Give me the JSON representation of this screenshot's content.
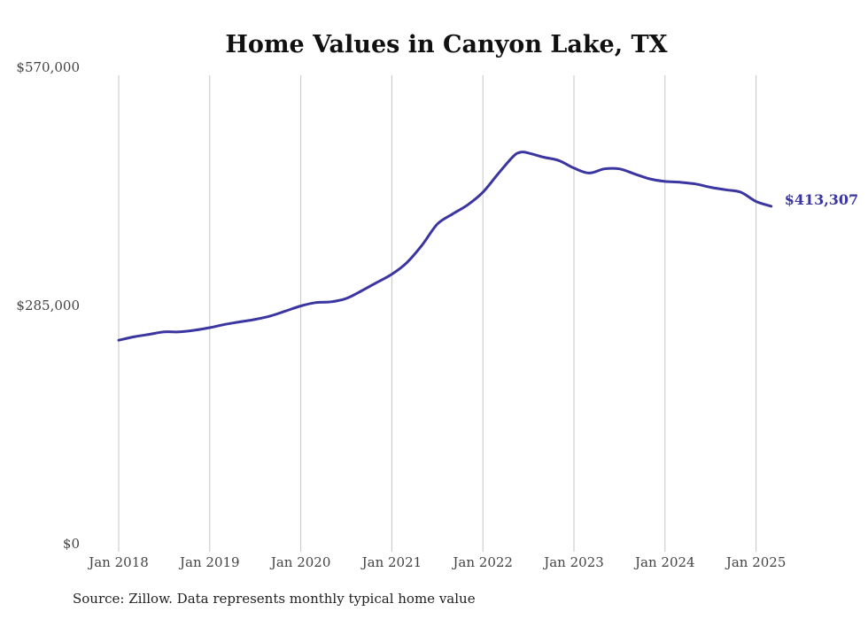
{
  "chart_data": {
    "type": "line",
    "title": "Home Values in Canyon Lake, TX",
    "xlabel": "",
    "ylabel": "",
    "ylim": [
      0,
      570000
    ],
    "yticks": [
      {
        "value": 0,
        "label": "$0"
      },
      {
        "value": 285000,
        "label": "$285,000"
      },
      {
        "value": 570000,
        "label": "$570,000"
      }
    ],
    "xticks": [
      {
        "value": "2018-01",
        "label": "Jan 2018"
      },
      {
        "value": "2019-01",
        "label": "Jan 2019"
      },
      {
        "value": "2020-01",
        "label": "Jan 2020"
      },
      {
        "value": "2021-01",
        "label": "Jan 2021"
      },
      {
        "value": "2022-01",
        "label": "Jan 2022"
      },
      {
        "value": "2023-01",
        "label": "Jan 2023"
      },
      {
        "value": "2024-01",
        "label": "Jan 2024"
      },
      {
        "value": "2025-01",
        "label": "Jan 2025"
      }
    ],
    "grid": {
      "vertical": true,
      "horizontal": false
    },
    "line_color": "#3a35a0",
    "end_label": "$413,307",
    "series": [
      {
        "x": [
          "2018-01",
          "2018-03",
          "2018-05",
          "2018-07",
          "2018-09",
          "2018-11",
          "2019-01",
          "2019-03",
          "2019-05",
          "2019-07",
          "2019-09",
          "2019-11",
          "2020-01",
          "2020-03",
          "2020-05",
          "2020-07",
          "2020-09",
          "2020-11",
          "2021-01",
          "2021-03",
          "2021-05",
          "2021-07",
          "2021-09",
          "2021-11",
          "2022-01",
          "2022-03",
          "2022-05",
          "2022-06",
          "2022-07",
          "2022-09",
          "2022-11",
          "2023-01",
          "2023-03",
          "2023-05",
          "2023-07",
          "2023-09",
          "2023-11",
          "2024-01",
          "2024-03",
          "2024-05",
          "2024-07",
          "2024-09",
          "2024-11",
          "2025-01",
          "2025-03"
        ],
        "values": [
          253000,
          257000,
          260000,
          263000,
          263000,
          265000,
          268000,
          272000,
          275000,
          278000,
          282000,
          288000,
          294000,
          298000,
          299000,
          303000,
          312000,
          322000,
          332000,
          346000,
          367000,
          392000,
          404000,
          415000,
          430000,
          452000,
          473000,
          478000,
          477000,
          472000,
          468000,
          459000,
          453000,
          458000,
          458000,
          452000,
          446000,
          443000,
          442000,
          440000,
          436000,
          433000,
          430000,
          419000,
          413307
        ]
      }
    ]
  },
  "source": "Source: Zillow. Data represents monthly typical home value"
}
